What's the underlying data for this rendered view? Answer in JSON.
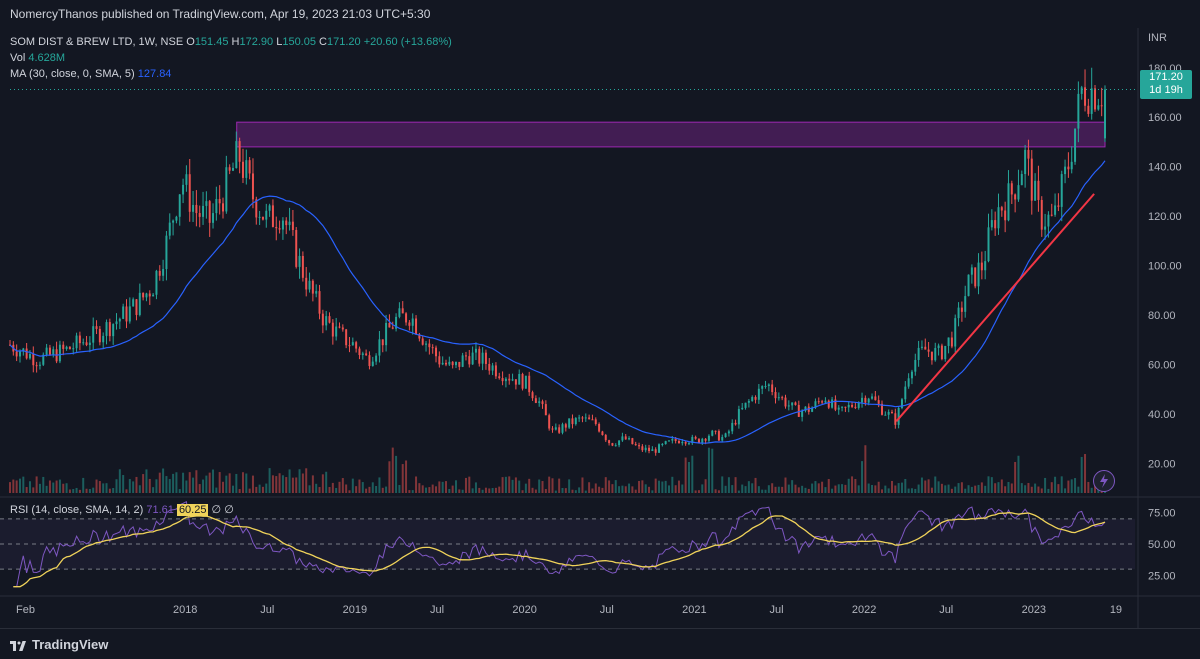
{
  "header": {
    "publisher_text": "NomercyThanos published on TradingView.com, Apr 19, 2023 21:03 UTC+5:30"
  },
  "legend": {
    "symbol": "SOM DIST & BREW LTD, 1W, NSE",
    "o_label": "O",
    "o_value": "151.45",
    "h_label": "H",
    "h_value": "172.90",
    "l_label": "L",
    "l_value": "150.05",
    "c_label": "C",
    "c_value": "171.20",
    "change": "+20.60 (+13.68%)",
    "vol_label": "Vol",
    "vol_value": "4.628M",
    "ma_label": "MA (30, close, 0, SMA, 5)",
    "ma_value": "127.84",
    "rsi_label": "RSI (14, close, SMA, 14, 2)",
    "rsi_value": "71.61",
    "rsi_ma_value": "60.25",
    "rsi_extra1": "∅",
    "rsi_extra2": "∅"
  },
  "price_tag": {
    "price": "171.20",
    "countdown": "1d 19h"
  },
  "footer": {
    "brand": "TradingView"
  },
  "colors": {
    "up": "#26a69a",
    "down": "#ef5350",
    "ma": "#2962ff",
    "rsi": "#7e57c2",
    "rsi_ma": "#f0d35a",
    "zone": "#9c27b0",
    "trend": "#f23645"
  },
  "chart_data": {
    "type": "candlestick",
    "currency_label": "INR",
    "y_ticks": [
      "180.00",
      "160.00",
      "140.00",
      "120.00",
      "100.00",
      "80.00",
      "60.00",
      "40.00",
      "20.00"
    ],
    "ylim": [
      8,
      188
    ],
    "x_ticks": [
      "Feb",
      "2018",
      "Jul",
      "2019",
      "Jul",
      "2020",
      "Jul",
      "2021",
      "Jul",
      "2022",
      "Jul",
      "2023",
      "19"
    ],
    "rsi_ticks": [
      "75.00",
      "50.00",
      "25.00"
    ],
    "rsi_ylim": [
      15,
      85
    ],
    "resistance_zone": {
      "low": 148,
      "high": 158
    },
    "trendline": {
      "from": {
        "date": "2022-03",
        "price": 37
      },
      "to": {
        "date": "2023-04",
        "price": 129
      }
    },
    "price_series": [
      {
        "date": "2017-01",
        "close": 68
      },
      {
        "date": "2017-03",
        "close": 62
      },
      {
        "date": "2017-05",
        "close": 66
      },
      {
        "date": "2017-07",
        "close": 72
      },
      {
        "date": "2017-09",
        "close": 80
      },
      {
        "date": "2017-10",
        "close": 85
      },
      {
        "date": "2017-11",
        "close": 92
      },
      {
        "date": "2017-12",
        "close": 110
      },
      {
        "date": "2018-01",
        "close": 135
      },
      {
        "date": "2018-02",
        "close": 122
      },
      {
        "date": "2018-03",
        "close": 118
      },
      {
        "date": "2018-04",
        "close": 130
      },
      {
        "date": "2018-05",
        "close": 145
      },
      {
        "date": "2018-06",
        "close": 128
      },
      {
        "date": "2018-07",
        "close": 118
      },
      {
        "date": "2018-08",
        "close": 122
      },
      {
        "date": "2018-09",
        "close": 105
      },
      {
        "date": "2018-10",
        "close": 90
      },
      {
        "date": "2018-11",
        "close": 78
      },
      {
        "date": "2018-12",
        "close": 72
      },
      {
        "date": "2019-01",
        "close": 68
      },
      {
        "date": "2019-02",
        "close": 62
      },
      {
        "date": "2019-03",
        "close": 70
      },
      {
        "date": "2019-04",
        "close": 78
      },
      {
        "date": "2019-05",
        "close": 80
      },
      {
        "date": "2019-06",
        "close": 70
      },
      {
        "date": "2019-07",
        "close": 62
      },
      {
        "date": "2019-08",
        "close": 58
      },
      {
        "date": "2019-09",
        "close": 64
      },
      {
        "date": "2019-10",
        "close": 62
      },
      {
        "date": "2019-11",
        "close": 58
      },
      {
        "date": "2019-12",
        "close": 55
      },
      {
        "date": "2020-01",
        "close": 53
      },
      {
        "date": "2020-02",
        "close": 45
      },
      {
        "date": "2020-03",
        "close": 32
      },
      {
        "date": "2020-04",
        "close": 36
      },
      {
        "date": "2020-05",
        "close": 38
      },
      {
        "date": "2020-06",
        "close": 36
      },
      {
        "date": "2020-07",
        "close": 28
      },
      {
        "date": "2020-08",
        "close": 30
      },
      {
        "date": "2020-09",
        "close": 26
      },
      {
        "date": "2020-10",
        "close": 25
      },
      {
        "date": "2020-11",
        "close": 28
      },
      {
        "date": "2020-12",
        "close": 30
      },
      {
        "date": "2021-01",
        "close": 29
      },
      {
        "date": "2021-02",
        "close": 32
      },
      {
        "date": "2021-03",
        "close": 30
      },
      {
        "date": "2021-04",
        "close": 40
      },
      {
        "date": "2021-05",
        "close": 47
      },
      {
        "date": "2021-06",
        "close": 52
      },
      {
        "date": "2021-07",
        "close": 46
      },
      {
        "date": "2021-08",
        "close": 41
      },
      {
        "date": "2021-09",
        "close": 42
      },
      {
        "date": "2021-10",
        "close": 47
      },
      {
        "date": "2021-11",
        "close": 40
      },
      {
        "date": "2021-12",
        "close": 44
      },
      {
        "date": "2022-01",
        "close": 48
      },
      {
        "date": "2022-02",
        "close": 42
      },
      {
        "date": "2022-03",
        "close": 37
      },
      {
        "date": "2022-04",
        "close": 60
      },
      {
        "date": "2022-05",
        "close": 66
      },
      {
        "date": "2022-06",
        "close": 64
      },
      {
        "date": "2022-07",
        "close": 72
      },
      {
        "date": "2022-08",
        "close": 92
      },
      {
        "date": "2022-09",
        "close": 100
      },
      {
        "date": "2022-10",
        "close": 122
      },
      {
        "date": "2022-11",
        "close": 128
      },
      {
        "date": "2022-12",
        "close": 144
      },
      {
        "date": "2023-01",
        "close": 120
      },
      {
        "date": "2023-02",
        "close": 118
      },
      {
        "date": "2023-03",
        "close": 140
      },
      {
        "date": "2023-04",
        "close": 171.2
      }
    ]
  }
}
